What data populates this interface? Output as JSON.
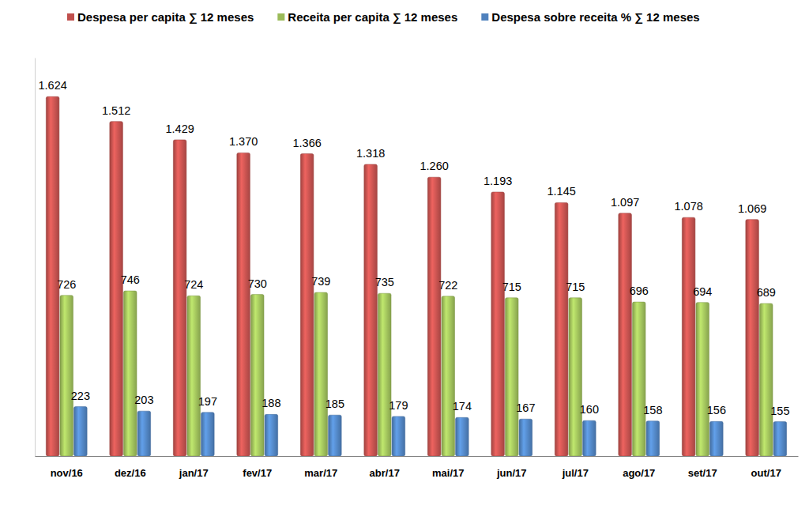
{
  "chart_data": {
    "type": "bar",
    "categories": [
      "nov/16",
      "dez/16",
      "jan/17",
      "fev/17",
      "mar/17",
      "abr/17",
      "mai/17",
      "jun/17",
      "jul/17",
      "ago/17",
      "set/17",
      "out/17"
    ],
    "series": [
      {
        "name": "Despesa per capita ∑ 12 meses",
        "color": "#c0504d",
        "values": [
          1624,
          1512,
          1429,
          1370,
          1366,
          1318,
          1260,
          1193,
          1145,
          1097,
          1078,
          1069
        ],
        "value_labels": [
          "1.624",
          "1.512",
          "1.429",
          "1.370",
          "1.366",
          "1.318",
          "1.260",
          "1.193",
          "1.145",
          "1.097",
          "1.078",
          "1.069"
        ]
      },
      {
        "name": "Receita per capita ∑ 12 meses",
        "color": "#9bbb59",
        "values": [
          726,
          746,
          724,
          730,
          739,
          735,
          722,
          715,
          715,
          696,
          694,
          689
        ]
      },
      {
        "name": "Despesa sobre receita % ∑ 12 meses",
        "color": "#4f81bd",
        "values": [
          223,
          203,
          197,
          188,
          185,
          179,
          174,
          167,
          160,
          158,
          156,
          155
        ]
      }
    ],
    "ylim": [
      0,
      1800
    ],
    "grid": false,
    "legend": "top",
    "data_labels": true,
    "tick_labels": "x"
  }
}
